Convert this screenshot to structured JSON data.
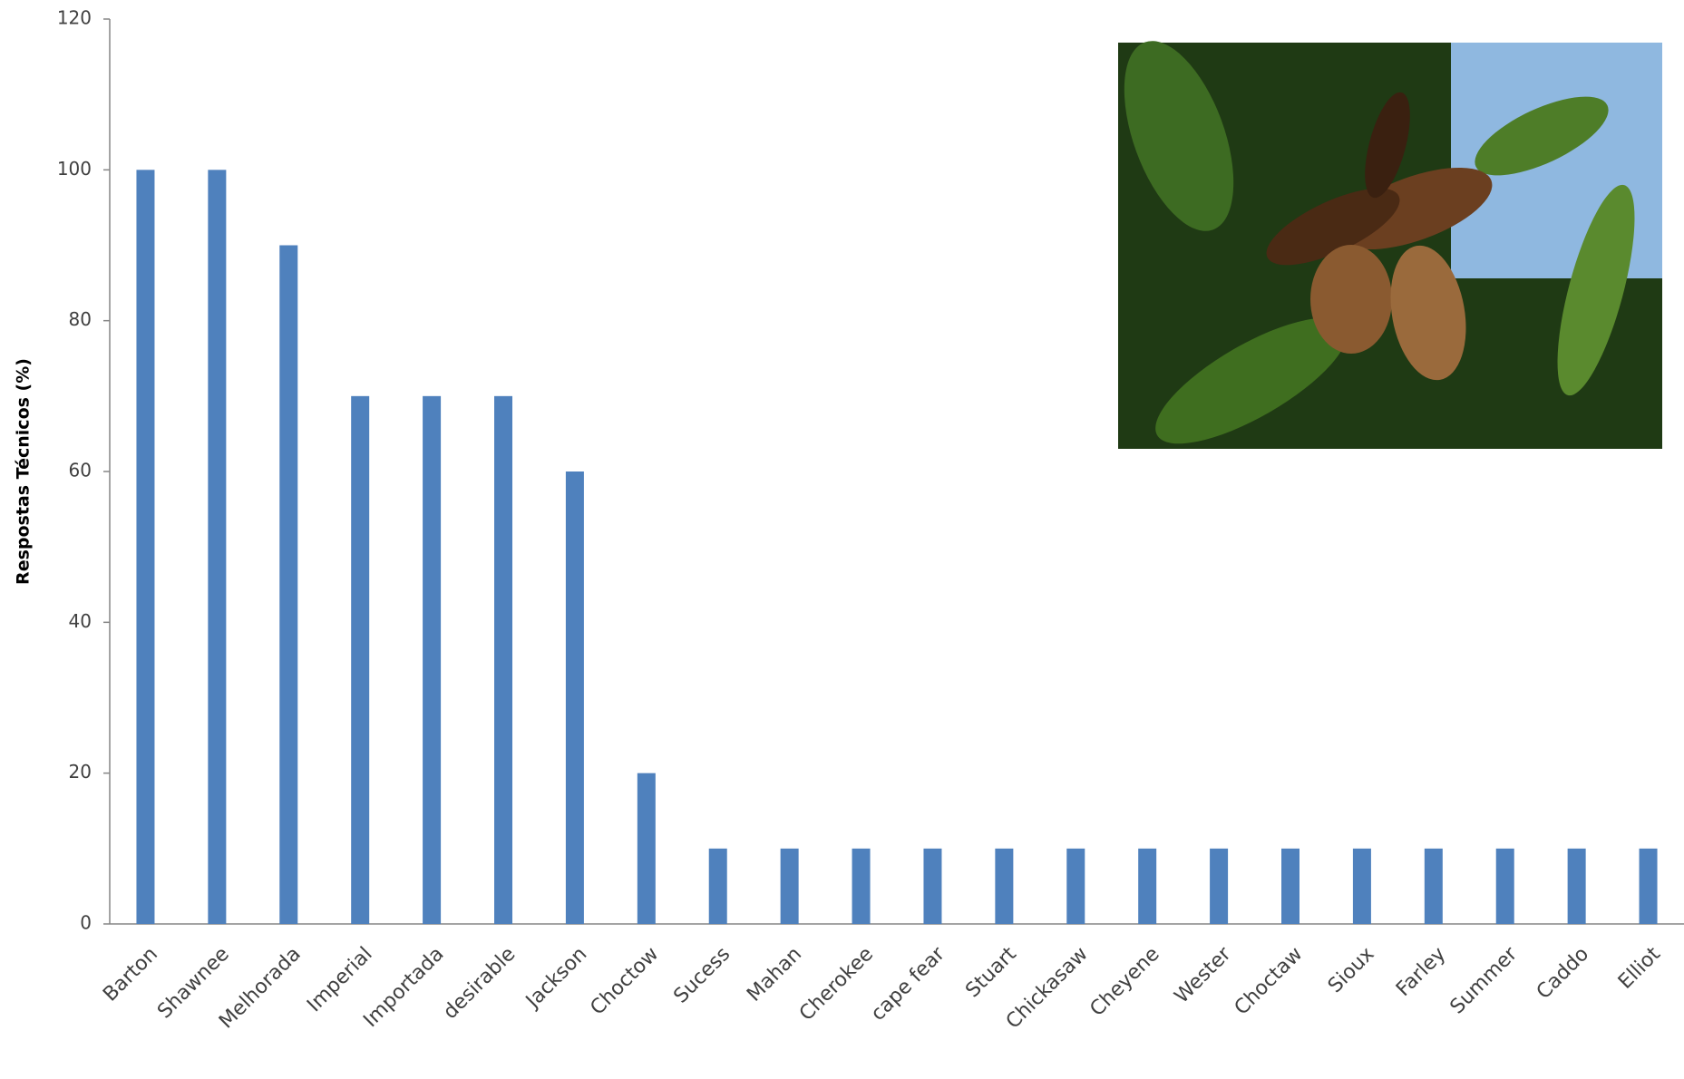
{
  "chart_data": {
    "type": "bar",
    "y_label": "Respostas Técnicos (%)",
    "categories": [
      "Barton",
      "Shawnee",
      "Melhorada",
      "Imperial",
      "Importada",
      "desirable",
      "Jackson",
      "Choctow",
      "Sucess",
      "Mahan",
      "Cherokee",
      "cape fear",
      "Stuart",
      "Chickasaw",
      "Cheyene",
      "Wester",
      "Choctaw",
      "Sioux",
      "Farley",
      "Summer",
      "Caddo",
      "Elliot"
    ],
    "values": [
      100,
      100,
      90,
      70,
      70,
      70,
      60,
      20,
      10,
      10,
      10,
      10,
      10,
      10,
      10,
      10,
      10,
      10,
      10,
      10,
      10,
      10
    ],
    "color": "#4f81bd",
    "ylim": [
      0,
      120
    ],
    "yticks": [
      0,
      20,
      40,
      60,
      80,
      100,
      120
    ],
    "grid": false
  }
}
